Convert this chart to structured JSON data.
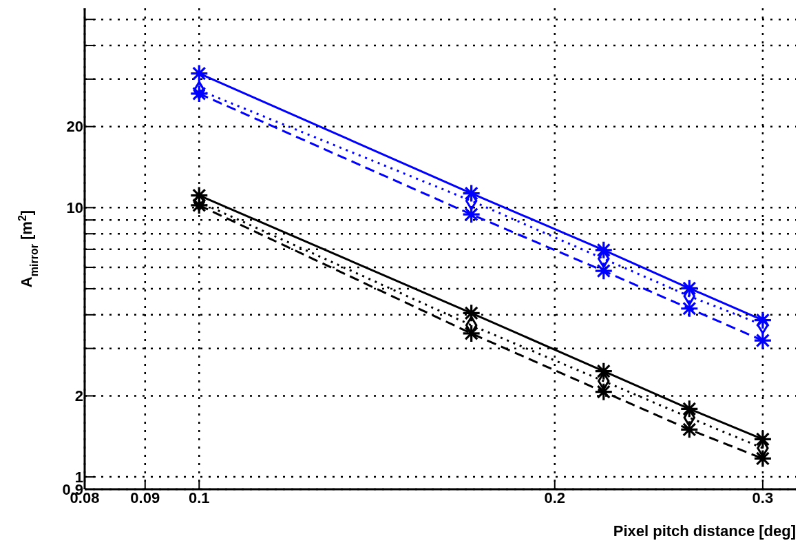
{
  "chart_data": {
    "type": "line",
    "xlabel": "Pixel pitch distance [deg]",
    "ylabel": "A$_{mirror}$ [m$^{2}$]",
    "x": [
      0.1,
      0.17,
      0.22,
      0.26,
      0.3
    ],
    "series": [
      {
        "color": "#0000ff",
        "line_style": "solid",
        "marker": "cross",
        "values": [
          31.5,
          11.3,
          6.96,
          5.02,
          3.82
        ]
      },
      {
        "color": "#0000ff",
        "line_style": "dotted",
        "marker": "diamond",
        "values": [
          27.3,
          10.6,
          6.46,
          4.69,
          3.67
        ]
      },
      {
        "color": "#0000ff",
        "line_style": "dashed",
        "marker": "cross",
        "values": [
          26.5,
          9.44,
          5.82,
          4.22,
          3.21
        ]
      },
      {
        "color": "#000000",
        "line_style": "solid",
        "marker": "cross",
        "values": [
          11.1,
          4.06,
          2.47,
          1.79,
          1.38
        ]
      },
      {
        "color": "#000000",
        "line_style": "dotted",
        "marker": "diamond",
        "values": [
          10.5,
          3.66,
          2.27,
          1.66,
          1.28
        ]
      },
      {
        "color": "#000000",
        "line_style": "dashed",
        "marker": "cross",
        "values": [
          10.2,
          3.41,
          2.07,
          1.5,
          1.17
        ]
      }
    ],
    "log": "xy",
    "xlim": [
      0.08,
      0.32
    ],
    "xticks": [
      0.08,
      0.09,
      0.1,
      0.2,
      0.3
    ],
    "ylim": [
      0.9,
      55
    ],
    "yticks": [
      0.9,
      1,
      2,
      {
        "value": 3,
        "label": null
      },
      {
        "value": 4,
        "label": null
      },
      {
        "value": 5,
        "label": null
      },
      {
        "value": 6,
        "label": null
      },
      {
        "value": 7,
        "label": null
      },
      {
        "value": 8,
        "label": null
      },
      {
        "value": 9,
        "label": null
      },
      10,
      20,
      {
        "value": 30,
        "label": null
      },
      {
        "value": 40,
        "label": null
      },
      {
        "value": 50,
        "label": null
      }
    ],
    "grid": true,
    "legend": false
  }
}
